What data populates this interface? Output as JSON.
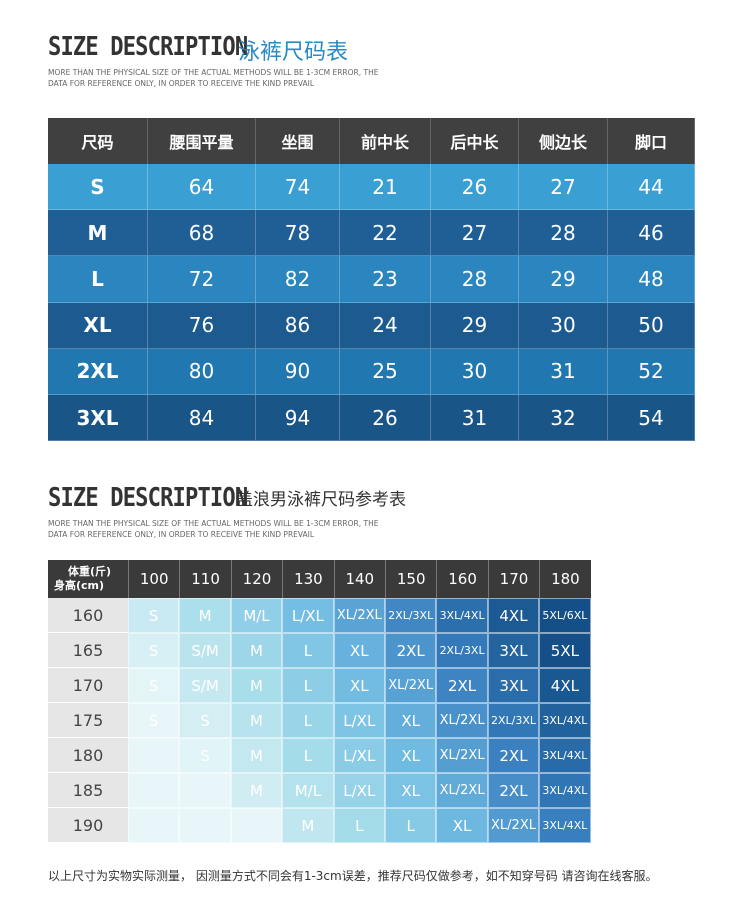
{
  "section1": {
    "title": "SIZE DESCRIPTION",
    "title_cn": "泳裤尺码表",
    "note_lines": [
      "MORE THAN THE PHYSICAL SIZE OF THE ACTUAL METHODS WILL BE 1-3CM ERROR, THE",
      "DATA FOR REFERENCE ONLY, IN ORDER TO RECEIVE THE KIND PREVAIL"
    ]
  },
  "table1": {
    "header": [
      "尺码",
      "腰围平量",
      "坐围",
      "前中长",
      "后中长",
      "侧边长",
      "脚口"
    ],
    "rows": [
      [
        "S",
        64,
        74,
        21,
        26,
        27,
        44
      ],
      [
        "M",
        68,
        78,
        22,
        27,
        28,
        46
      ],
      [
        "L",
        72,
        82,
        23,
        28,
        29,
        48
      ],
      [
        "XL",
        76,
        86,
        24,
        29,
        30,
        50
      ],
      [
        "2XL",
        80,
        90,
        25,
        30,
        31,
        52
      ],
      [
        "3XL",
        84,
        94,
        26,
        31,
        32,
        54
      ]
    ]
  },
  "section2": {
    "title": "SIZE DESCRIPTION",
    "title_cn": "盖浪男泳裤尺码参考表",
    "note_lines": [
      "MORE THAN THE PHYSICAL SIZE OF THE ACTUAL METHODS WILL BE 1-3CM ERROR, THE",
      "DATA FOR REFERENCE ONLY, IN ORDER TO RECEIVE THE KIND PREVAIL"
    ]
  },
  "table2": {
    "corner": [
      "体重(斤)",
      "身高(cm)"
    ],
    "weights": [
      100,
      110,
      120,
      130,
      140,
      150,
      160,
      170,
      180
    ],
    "rows": [
      {
        "height": 160,
        "cells": [
          "S",
          "M",
          "M/L",
          "L/XL",
          "XL/2XL",
          "2XL/3XL",
          "3XL/4XL",
          "4XL",
          "5XL/6XL"
        ]
      },
      {
        "height": 165,
        "cells": [
          "S",
          "S/M",
          "M",
          "L",
          "XL",
          "2XL",
          "2XL/3XL",
          "3XL",
          "5XL"
        ]
      },
      {
        "height": 170,
        "cells": [
          "S",
          "S/M",
          "M",
          "L",
          "XL",
          "XL/2XL",
          "2XL",
          "3XL",
          "4XL"
        ]
      },
      {
        "height": 175,
        "cells": [
          "S",
          "S",
          "M",
          "L",
          "L/XL",
          "XL",
          "XL/2XL",
          "2XL/3XL",
          "3XL/4XL"
        ]
      },
      {
        "height": 180,
        "cells": [
          null,
          "S",
          "M",
          "L",
          "L/XL",
          "XL",
          "XL/2XL",
          "2XL",
          "3XL/4XL"
        ]
      },
      {
        "height": 185,
        "cells": [
          null,
          null,
          "M",
          "M/L",
          "L/XL",
          "XL",
          "XL/2XL",
          "2XL",
          "3XL/4XL"
        ]
      },
      {
        "height": 190,
        "cells": [
          null,
          null,
          null,
          "M",
          "L",
          "L",
          "XL",
          "XL/2XL",
          "3XL/4XL"
        ]
      }
    ]
  },
  "footer": "以上尺寸为实物实际测量， 因测量方式不同会有1-3cm误差，推荐尺码仅做参考，如不知穿号码 请咨询在线客服。"
}
